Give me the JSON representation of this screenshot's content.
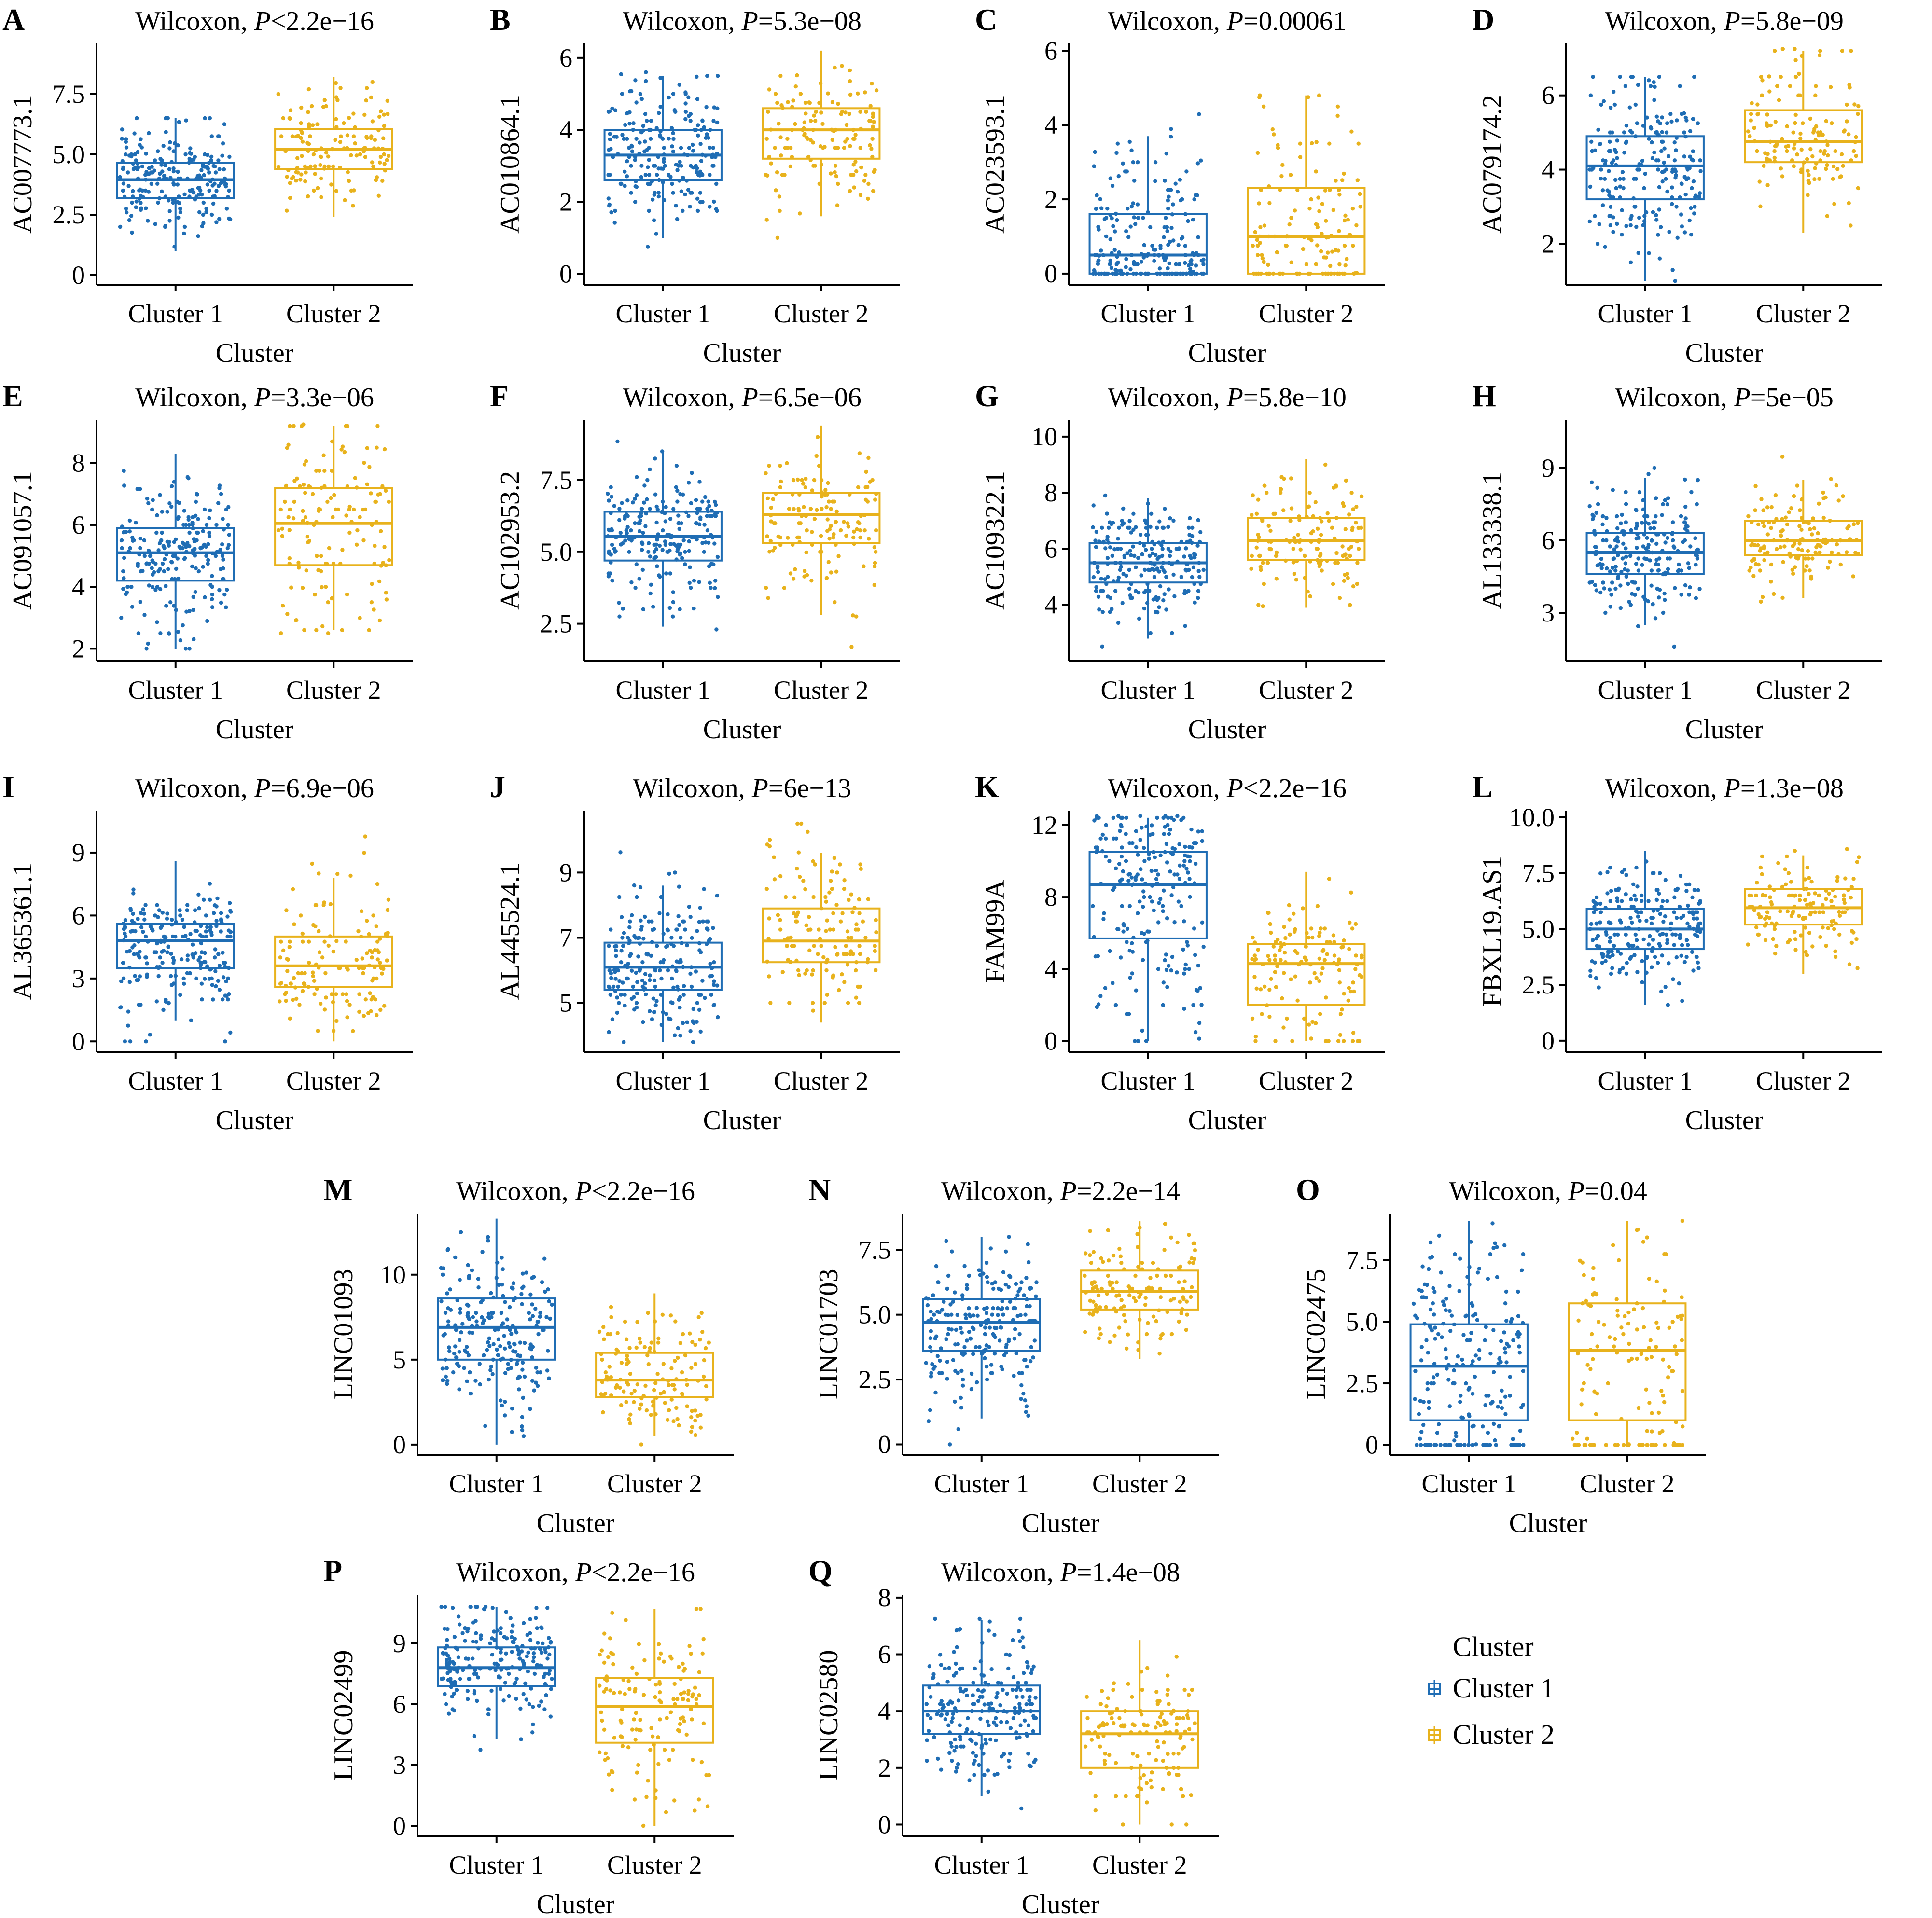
{
  "colors": {
    "cluster1": "#1f6db4",
    "cluster2": "#e8b21c"
  },
  "legend": {
    "title": "Cluster",
    "items": [
      {
        "label": "Cluster 1",
        "color": "#1f6db4"
      },
      {
        "label": "Cluster 2",
        "color": "#e8b21c"
      }
    ]
  },
  "chart_data": [
    {
      "panel": "A",
      "type": "box",
      "title_prefix": "Wilcoxon, ",
      "p_label": "P",
      "p_value": "<2.2e−16",
      "ylabel": "AC007773.1",
      "xlabel": "Cluster",
      "categories": [
        "Cluster 1",
        "Cluster 2"
      ],
      "ylim": [
        -0.4,
        9.6
      ],
      "yticks": [
        0,
        2.5,
        5.0,
        7.5
      ],
      "ytick_labels": [
        "0",
        "2.5",
        "5.0",
        "7.5"
      ],
      "boxes": [
        {
          "min": 1.0,
          "q1": 3.2,
          "median": 3.95,
          "q3": 4.65,
          "max": 6.5,
          "lo": 0,
          "hi": 6.5,
          "n": 220
        },
        {
          "min": 2.4,
          "q1": 4.4,
          "median": 5.2,
          "q3": 6.05,
          "max": 8.2,
          "lo": 2.3,
          "hi": 9.4,
          "n": 140
        }
      ]
    },
    {
      "panel": "B",
      "type": "box",
      "title_prefix": "Wilcoxon, ",
      "p_label": "P",
      "p_value": "=5.3e−08",
      "ylabel": "AC010864.1",
      "xlabel": "Cluster",
      "categories": [
        "Cluster 1",
        "Cluster 2"
      ],
      "ylim": [
        -0.3,
        6.4
      ],
      "yticks": [
        0,
        2,
        4,
        6
      ],
      "ytick_labels": [
        "0",
        "2",
        "4",
        "6"
      ],
      "boxes": [
        {
          "min": 1.0,
          "q1": 2.6,
          "median": 3.3,
          "q3": 4.0,
          "max": 5.5,
          "lo": 0,
          "hi": 5.6,
          "n": 220
        },
        {
          "min": 1.6,
          "q1": 3.2,
          "median": 4.0,
          "q3": 4.6,
          "max": 6.2,
          "lo": 1.0,
          "hi": 6.2,
          "n": 140
        }
      ]
    },
    {
      "panel": "C",
      "type": "box",
      "title_prefix": "Wilcoxon, ",
      "p_label": "P",
      "p_value": "=0.00061",
      "ylabel": "AC023593.1",
      "xlabel": "Cluster",
      "categories": [
        "Cluster 1",
        "Cluster 2"
      ],
      "ylim": [
        -0.3,
        6.2
      ],
      "yticks": [
        0,
        2,
        4,
        6
      ],
      "ytick_labels": [
        "0",
        "2",
        "4",
        "6"
      ],
      "boxes": [
        {
          "min": 0,
          "q1": 0,
          "median": 0.5,
          "q3": 1.6,
          "max": 3.7,
          "lo": 0,
          "hi": 5.8,
          "n": 220
        },
        {
          "min": 0,
          "q1": 0,
          "median": 1.0,
          "q3": 2.3,
          "max": 4.8,
          "lo": 0,
          "hi": 4.8,
          "n": 140
        }
      ]
    },
    {
      "panel": "D",
      "type": "box",
      "title_prefix": "Wilcoxon, ",
      "p_label": "P",
      "p_value": "=5.8e−09",
      "ylabel": "AC079174.2",
      "xlabel": "Cluster",
      "categories": [
        "Cluster 1",
        "Cluster 2"
      ],
      "ylim": [
        0.9,
        7.4
      ],
      "yticks": [
        2,
        4,
        6
      ],
      "ytick_labels": [
        "2",
        "4",
        "6"
      ],
      "boxes": [
        {
          "min": 1.0,
          "q1": 3.2,
          "median": 4.1,
          "q3": 4.9,
          "max": 6.5,
          "lo": 1.0,
          "hi": 6.5,
          "n": 220
        },
        {
          "min": 2.3,
          "q1": 4.2,
          "median": 4.75,
          "q3": 5.6,
          "max": 7.2,
          "lo": 1.6,
          "hi": 7.2,
          "n": 140
        }
      ]
    },
    {
      "panel": "E",
      "type": "box",
      "title_prefix": "Wilcoxon, ",
      "p_label": "P",
      "p_value": "=3.3e−06",
      "ylabel": "AC091057.1",
      "xlabel": "Cluster",
      "categories": [
        "Cluster 1",
        "Cluster 2"
      ],
      "ylim": [
        1.6,
        9.4
      ],
      "yticks": [
        2,
        4,
        6,
        8
      ],
      "ytick_labels": [
        "2",
        "4",
        "6",
        "8"
      ],
      "boxes": [
        {
          "min": 2.0,
          "q1": 4.2,
          "median": 5.1,
          "q3": 5.9,
          "max": 8.3,
          "lo": 2.0,
          "hi": 8.8,
          "n": 220
        },
        {
          "min": 2.6,
          "q1": 4.7,
          "median": 6.05,
          "q3": 7.2,
          "max": 9.2,
          "lo": 2.6,
          "hi": 9.2,
          "n": 140
        }
      ]
    },
    {
      "panel": "F",
      "type": "box",
      "title_prefix": "Wilcoxon, ",
      "p_label": "P",
      "p_value": "=6.5e−06",
      "ylabel": "AC102953.2",
      "xlabel": "Cluster",
      "categories": [
        "Cluster 1",
        "Cluster 2"
      ],
      "ylim": [
        1.2,
        9.6
      ],
      "yticks": [
        2.5,
        5.0,
        7.5
      ],
      "ytick_labels": [
        "2.5",
        "5.0",
        "7.5"
      ],
      "boxes": [
        {
          "min": 2.4,
          "q1": 4.7,
          "median": 5.55,
          "q3": 6.4,
          "max": 8.5,
          "lo": 2.3,
          "hi": 9.0,
          "n": 220
        },
        {
          "min": 2.8,
          "q1": 5.3,
          "median": 6.3,
          "q3": 7.05,
          "max": 9.4,
          "lo": 1.5,
          "hi": 9.4,
          "n": 140
        }
      ]
    },
    {
      "panel": "G",
      "type": "box",
      "title_prefix": "Wilcoxon, ",
      "p_label": "P",
      "p_value": "=5.8e−10",
      "ylabel": "AC109322.1",
      "xlabel": "Cluster",
      "categories": [
        "Cluster 1",
        "Cluster 2"
      ],
      "ylim": [
        2.0,
        10.6
      ],
      "yticks": [
        4,
        6,
        8,
        10
      ],
      "ytick_labels": [
        "4",
        "6",
        "8",
        "10"
      ],
      "boxes": [
        {
          "min": 2.8,
          "q1": 4.8,
          "median": 5.5,
          "q3": 6.2,
          "max": 7.8,
          "lo": 2.4,
          "hi": 7.9,
          "n": 220
        },
        {
          "min": 3.9,
          "q1": 5.6,
          "median": 6.3,
          "q3": 7.1,
          "max": 9.2,
          "lo": 3.9,
          "hi": 10.3,
          "n": 140
        }
      ]
    },
    {
      "panel": "H",
      "type": "box",
      "title_prefix": "Wilcoxon, ",
      "p_label": "P",
      "p_value": "=5e−05",
      "ylabel": "AL133338.1",
      "xlabel": "Cluster",
      "categories": [
        "Cluster 1",
        "Cluster 2"
      ],
      "ylim": [
        1.0,
        11.0
      ],
      "yticks": [
        3,
        6,
        9
      ],
      "ytick_labels": [
        "3",
        "6",
        "9"
      ],
      "boxes": [
        {
          "min": 2.5,
          "q1": 4.6,
          "median": 5.5,
          "q3": 6.3,
          "max": 8.6,
          "lo": 1.6,
          "hi": 10.8,
          "n": 220
        },
        {
          "min": 3.6,
          "q1": 5.4,
          "median": 6.0,
          "q3": 6.8,
          "max": 8.5,
          "lo": 2.3,
          "hi": 10.0,
          "n": 140
        }
      ]
    },
    {
      "panel": "I",
      "type": "box",
      "title_prefix": "Wilcoxon, ",
      "p_label": "P",
      "p_value": "=6.9e−06",
      "ylabel": "AL365361.1",
      "xlabel": "Cluster",
      "categories": [
        "Cluster 1",
        "Cluster 2"
      ],
      "ylim": [
        -0.5,
        11.0
      ],
      "yticks": [
        0,
        3,
        6,
        9
      ],
      "ytick_labels": [
        "0",
        "3",
        "6",
        "9"
      ],
      "boxes": [
        {
          "min": 1.0,
          "q1": 3.5,
          "median": 4.8,
          "q3": 5.6,
          "max": 8.6,
          "lo": 0,
          "hi": 8.6,
          "n": 220
        },
        {
          "min": 0,
          "q1": 2.6,
          "median": 3.6,
          "q3": 5.0,
          "max": 7.8,
          "lo": 0,
          "hi": 10.7,
          "n": 140
        }
      ]
    },
    {
      "panel": "J",
      "type": "box",
      "title_prefix": "Wilcoxon, ",
      "p_label": "P",
      "p_value": "=6e−13",
      "ylabel": "AL445524.1",
      "xlabel": "Cluster",
      "categories": [
        "Cluster 1",
        "Cluster 2"
      ],
      "ylim": [
        3.5,
        10.9
      ],
      "yticks": [
        5,
        7,
        9
      ],
      "ytick_labels": [
        "5",
        "7",
        "9"
      ],
      "boxes": [
        {
          "min": 3.8,
          "q1": 5.4,
          "median": 6.1,
          "q3": 6.85,
          "max": 8.6,
          "lo": 3.8,
          "hi": 10.5,
          "n": 220
        },
        {
          "min": 4.4,
          "q1": 6.25,
          "median": 6.9,
          "q3": 7.9,
          "max": 9.6,
          "lo": 4.4,
          "hi": 10.6,
          "n": 140
        }
      ]
    },
    {
      "panel": "K",
      "type": "box",
      "title_prefix": "Wilcoxon, ",
      "p_label": "P",
      "p_value": "<2.2e−16",
      "ylabel": "FAM99A",
      "xlabel": "Cluster",
      "categories": [
        "Cluster 1",
        "Cluster 2"
      ],
      "ylim": [
        -0.6,
        12.8
      ],
      "yticks": [
        0,
        4,
        8,
        12
      ],
      "ytick_labels": [
        "0",
        "4",
        "8",
        "12"
      ],
      "boxes": [
        {
          "min": 0,
          "q1": 5.7,
          "median": 8.7,
          "q3": 10.5,
          "max": 12.4,
          "lo": 0,
          "hi": 12.4,
          "n": 220
        },
        {
          "min": 0,
          "q1": 2.0,
          "median": 4.3,
          "q3": 5.4,
          "max": 9.4,
          "lo": 0,
          "hi": 11.3,
          "n": 140
        }
      ]
    },
    {
      "panel": "L",
      "type": "box",
      "title_prefix": "Wilcoxon, ",
      "p_label": "P",
      "p_value": "=1.3e−08",
      "ylabel": "FBXL19.AS1",
      "xlabel": "Cluster",
      "categories": [
        "Cluster 1",
        "Cluster 2"
      ],
      "ylim": [
        -0.5,
        10.3
      ],
      "yticks": [
        0,
        2.5,
        5.0,
        7.5,
        10.0
      ],
      "ytick_labels": [
        "0",
        "2.5",
        "5.0",
        "7.5",
        "10.0"
      ],
      "boxes": [
        {
          "min": 1.6,
          "q1": 4.1,
          "median": 5.0,
          "q3": 5.9,
          "max": 8.5,
          "lo": 0,
          "hi": 8.5,
          "n": 220
        },
        {
          "min": 3.0,
          "q1": 5.2,
          "median": 5.95,
          "q3": 6.8,
          "max": 8.3,
          "lo": 2.6,
          "hi": 9.6,
          "n": 140
        }
      ]
    },
    {
      "panel": "M",
      "type": "box",
      "title_prefix": "Wilcoxon, ",
      "p_label": "P",
      "p_value": "<2.2e−16",
      "ylabel": "LINC01093",
      "xlabel": "Cluster",
      "categories": [
        "Cluster 1",
        "Cluster 2"
      ],
      "ylim": [
        -0.6,
        13.6
      ],
      "yticks": [
        0,
        5,
        10
      ],
      "ytick_labels": [
        "0",
        "5",
        "10"
      ],
      "boxes": [
        {
          "min": 0,
          "q1": 5.0,
          "median": 6.9,
          "q3": 8.6,
          "max": 13.3,
          "lo": 0,
          "hi": 13.3,
          "n": 220
        },
        {
          "min": 0.5,
          "q1": 2.8,
          "median": 3.8,
          "q3": 5.4,
          "max": 8.9,
          "lo": 0,
          "hi": 8.9,
          "n": 140
        }
      ]
    },
    {
      "panel": "N",
      "type": "box",
      "title_prefix": "Wilcoxon, ",
      "p_label": "P",
      "p_value": "=2.2e−14",
      "ylabel": "LINC01703",
      "xlabel": "Cluster",
      "categories": [
        "Cluster 1",
        "Cluster 2"
      ],
      "ylim": [
        -0.4,
        8.9
      ],
      "yticks": [
        0,
        2.5,
        5.0,
        7.5
      ],
      "ytick_labels": [
        "0",
        "2.5",
        "5.0",
        "7.5"
      ],
      "boxes": [
        {
          "min": 1.0,
          "q1": 3.6,
          "median": 4.7,
          "q3": 5.6,
          "max": 8.0,
          "lo": 0,
          "hi": 8.0,
          "n": 220
        },
        {
          "min": 3.3,
          "q1": 5.2,
          "median": 5.9,
          "q3": 6.7,
          "max": 8.6,
          "lo": 2.6,
          "hi": 8.6,
          "n": 140
        }
      ]
    },
    {
      "panel": "O",
      "type": "box",
      "title_prefix": "Wilcoxon, ",
      "p_label": "P",
      "p_value": "=0.04",
      "ylabel": "LINC02475",
      "xlabel": "Cluster",
      "categories": [
        "Cluster 1",
        "Cluster 2"
      ],
      "ylim": [
        -0.4,
        9.4
      ],
      "yticks": [
        0,
        2.5,
        5.0,
        7.5
      ],
      "ytick_labels": [
        "0",
        "2.5",
        "5.0",
        "7.5"
      ],
      "boxes": [
        {
          "min": 0,
          "q1": 1.0,
          "median": 3.2,
          "q3": 4.9,
          "max": 9.1,
          "lo": 0,
          "hi": 9.1,
          "n": 220
        },
        {
          "min": 0,
          "q1": 1.0,
          "median": 3.85,
          "q3": 5.75,
          "max": 9.1,
          "lo": 0,
          "hi": 9.1,
          "n": 140
        }
      ]
    },
    {
      "panel": "P",
      "type": "box",
      "title_prefix": "Wilcoxon, ",
      "p_label": "P",
      "p_value": "<2.2e−16",
      "ylabel": "LINC02499",
      "xlabel": "Cluster",
      "categories": [
        "Cluster 1",
        "Cluster 2"
      ],
      "ylim": [
        -0.5,
        11.4
      ],
      "yticks": [
        0,
        3,
        6,
        9
      ],
      "ytick_labels": [
        "0",
        "3",
        "6",
        "9"
      ],
      "boxes": [
        {
          "min": 4.3,
          "q1": 6.9,
          "median": 7.8,
          "q3": 8.8,
          "max": 10.8,
          "lo": 1.0,
          "hi": 10.8,
          "n": 220
        },
        {
          "min": 0,
          "q1": 4.1,
          "median": 5.9,
          "q3": 7.3,
          "max": 10.7,
          "lo": 0,
          "hi": 10.7,
          "n": 140
        }
      ]
    },
    {
      "panel": "Q",
      "type": "box",
      "title_prefix": "Wilcoxon, ",
      "p_label": "P",
      "p_value": "=1.4e−08",
      "ylabel": "LINC02580",
      "xlabel": "Cluster",
      "categories": [
        "Cluster 1",
        "Cluster 2"
      ],
      "ylim": [
        -0.4,
        8.1
      ],
      "yticks": [
        0,
        2,
        4,
        6,
        8
      ],
      "ytick_labels": [
        "0",
        "2",
        "4",
        "6",
        "8"
      ],
      "boxes": [
        {
          "min": 1.0,
          "q1": 3.2,
          "median": 4.0,
          "q3": 4.9,
          "max": 7.2,
          "lo": 0,
          "hi": 7.2,
          "n": 220
        },
        {
          "min": 0,
          "q1": 2.0,
          "median": 3.2,
          "q3": 4.0,
          "max": 6.5,
          "lo": 0,
          "hi": 7.2,
          "n": 140
        }
      ]
    }
  ]
}
